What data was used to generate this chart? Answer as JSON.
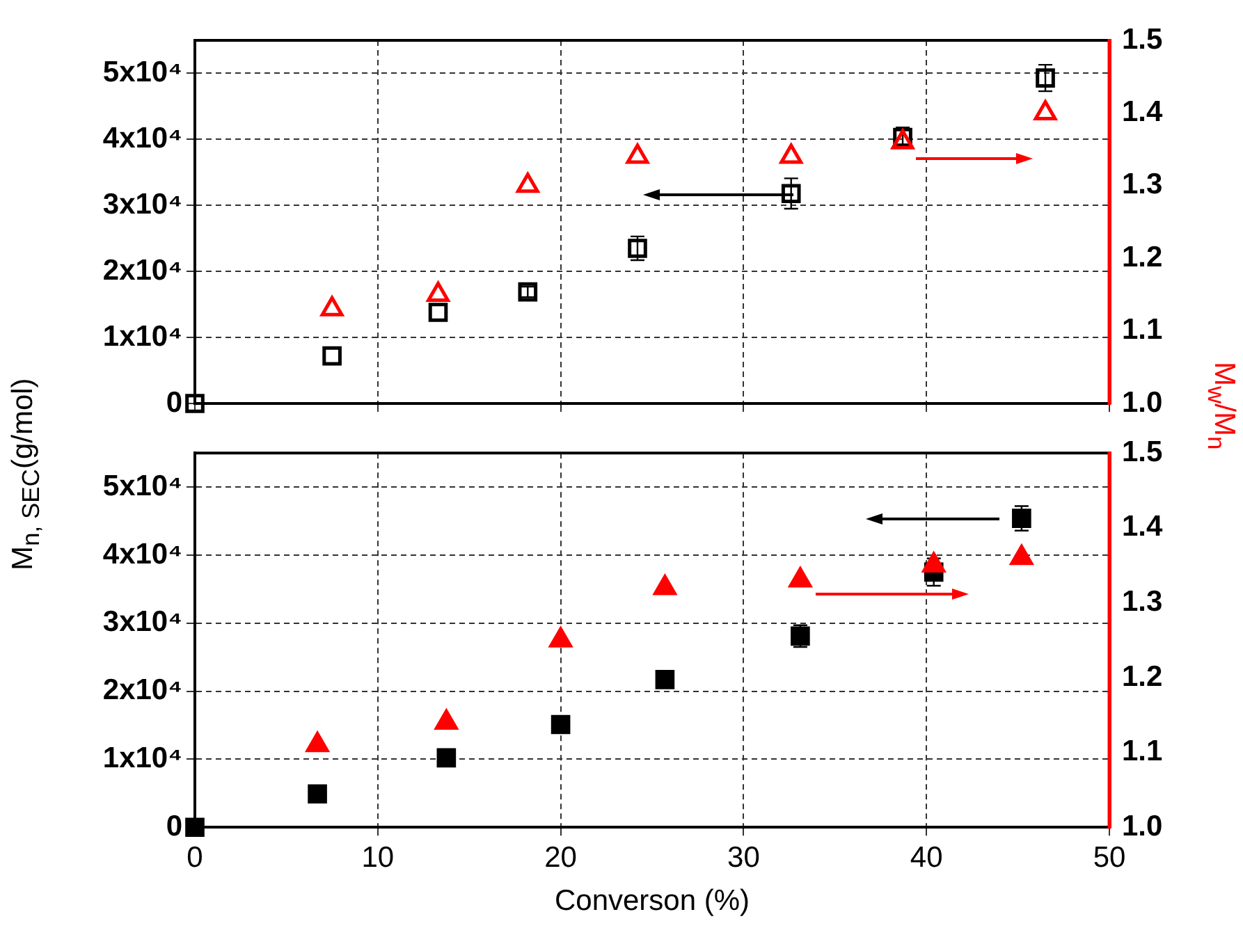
{
  "chart_data": [
    {
      "type": "scatter",
      "ylabel": "M$_{n, SEC}$(g/mol)",
      "y2label": "M$_{w}$/M$_{n}$",
      "xlim": [
        0,
        50
      ],
      "xticks": [
        0,
        10,
        20,
        30,
        40,
        50
      ],
      "ylim": [
        0,
        55000
      ],
      "yticks": [
        0,
        {
          "value": 10000,
          "label": "1x10⁴"
        },
        {
          "value": 20000,
          "label": "2x10⁴"
        },
        {
          "value": 30000,
          "label": "3x10⁴"
        },
        {
          "value": 40000,
          "label": "4x10⁴"
        },
        {
          "value": 50000,
          "label": "5x10⁴"
        }
      ],
      "y2lim": [
        1.0,
        1.5
      ],
      "y2ticks": [
        {
          "value": 1.0,
          "label": "1.0"
        },
        1.1,
        1.2,
        1.3,
        1.4,
        1.5
      ],
      "grid": true,
      "tick_labels": "y",
      "series": [
        {
          "color": "#000000",
          "marker": "square",
          "x": [
            0,
            7.5,
            13.3,
            18.2,
            24.2,
            32.6,
            38.7,
            46.5
          ],
          "values": [
            0,
            7200,
            13800,
            16900,
            23500,
            31800,
            40300,
            49300
          ],
          "errors": [
            null,
            null,
            null,
            800,
            1800,
            2300,
            1500,
            2000
          ]
        },
        {
          "color": "#ff0000",
          "marker": "triangle",
          "axis": "y2",
          "x": [
            7.5,
            13.3,
            18.2,
            24.2,
            32.6,
            38.7,
            46.5
          ],
          "values": [
            1.13,
            1.15,
            1.3,
            1.34,
            1.34,
            1.36,
            1.4
          ]
        }
      ]
    },
    {
      "type": "scatter",
      "xlabel": "Converson (%)",
      "xlim": [
        0,
        50
      ],
      "xticks": [
        0,
        10,
        20,
        30,
        40,
        50
      ],
      "ylim": [
        0,
        55000
      ],
      "yticks": [
        0,
        {
          "value": 10000,
          "label": "1x10⁴"
        },
        {
          "value": 20000,
          "label": "2x10⁴"
        },
        {
          "value": 30000,
          "label": "3x10⁴"
        },
        {
          "value": 40000,
          "label": "4x10⁴"
        },
        {
          "value": 50000,
          "label": "5x10⁴"
        }
      ],
      "y2lim": [
        1.0,
        1.5
      ],
      "y2ticks": [
        {
          "value": 1.0,
          "label": "1.0"
        },
        1.1,
        1.2,
        1.3,
        1.4,
        1.5
      ],
      "grid": true,
      "series": [
        {
          "color": "#000000",
          "marker": "square",
          "x": [
            0,
            6.7,
            13.75,
            20.0,
            25.7,
            33.1,
            40.4,
            45.2
          ],
          "values": [
            0,
            4900,
            10200,
            15100,
            21700,
            28100,
            37500,
            45400
          ],
          "errors": [
            null,
            null,
            null,
            null,
            null,
            1600,
            2000,
            1800
          ]
        },
        {
          "color": "#ff0000",
          "marker": "triangle",
          "axis": "y2",
          "x": [
            6.7,
            13.75,
            20.0,
            25.7,
            33.1,
            40.4,
            45.2
          ],
          "values": [
            1.11,
            1.14,
            1.25,
            1.32,
            1.33,
            1.35,
            1.36
          ]
        }
      ]
    }
  ]
}
